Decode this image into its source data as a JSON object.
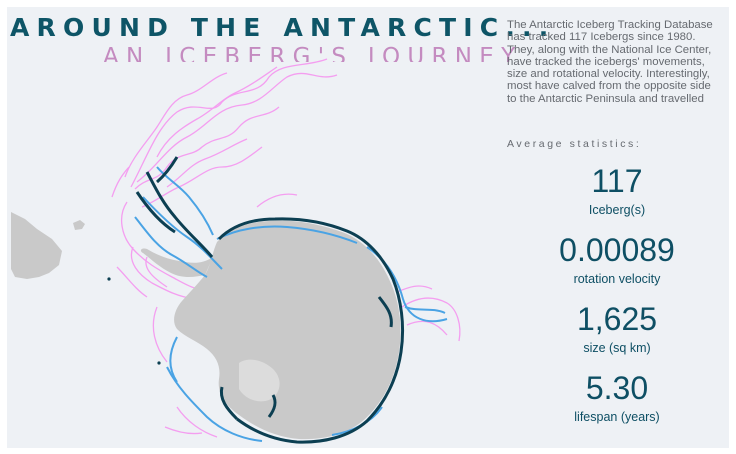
{
  "header": {
    "title": "AROUND THE ANTARCTIC...",
    "subtitle": "AN ICEBERG'S JOURNEY"
  },
  "description": "The Antarctic Iceberg Tracking Database has tracked 117 Icebergs since 1980. They, along with the National Ice Center, have tracked the icebergs' movements, size and rotational velocity. Interestingly, most have calved from the opposite side to the Antarctic Peninsula and travelled",
  "stats": {
    "heading": "Average statistics:",
    "items": [
      {
        "value": "117",
        "label": "Iceberg(s)"
      },
      {
        "value": "0.00089",
        "label": "rotation velocity"
      },
      {
        "value": "1,625",
        "label": "size (sq km)"
      },
      {
        "value": "5.30",
        "label": "lifespan (years)"
      }
    ]
  },
  "map": {
    "colors": {
      "background": "#eef1f5",
      "land": "#c9c9c9",
      "track_light": "#f49ef0",
      "track_mid": "#4aa3e4",
      "track_dark": "#0c3f52"
    }
  }
}
